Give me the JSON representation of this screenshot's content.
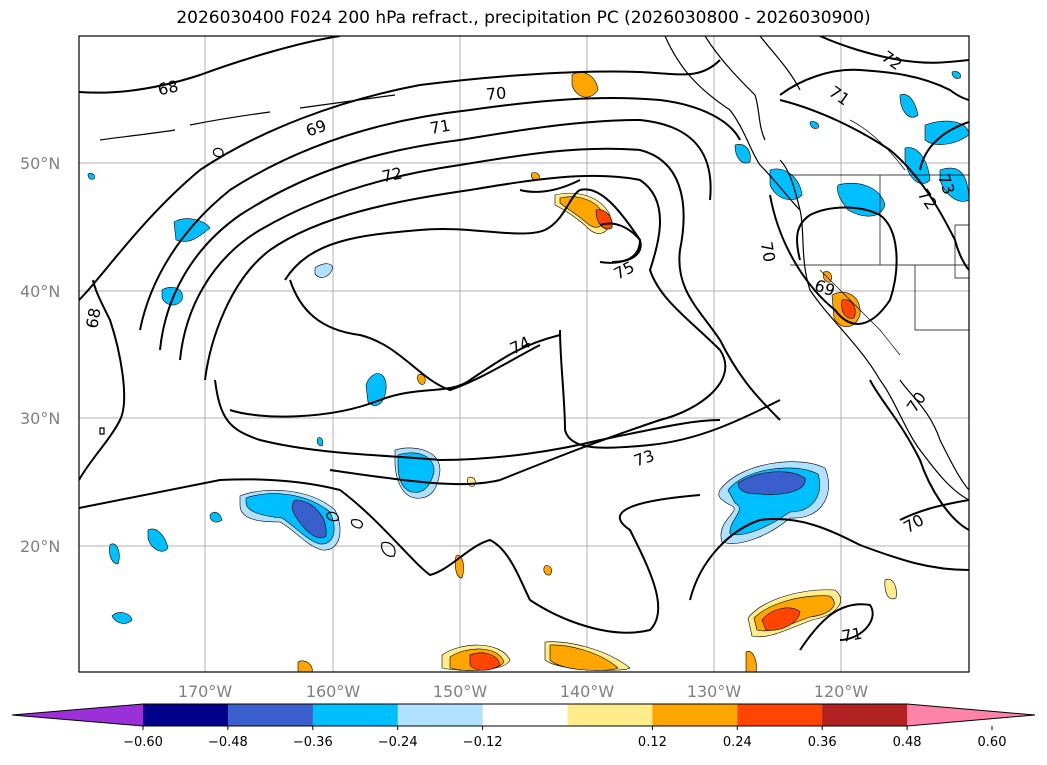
{
  "title": "2026030400 F024 200 hPa refract., precipitation PC (2026030800 - 2026030900)",
  "map": {
    "lat_labels": [
      "50°N",
      "40°N",
      "30°N",
      "20°N"
    ],
    "lon_labels": [
      "170°W",
      "160°W",
      "150°W",
      "140°W",
      "130°W",
      "120°W"
    ],
    "contour_labels": [
      "68",
      "69",
      "70",
      "71",
      "72",
      "72",
      "71",
      "70",
      "69",
      "68",
      "74",
      "75",
      "73",
      "70",
      "71",
      "72",
      "70",
      "73"
    ]
  },
  "colorbar": {
    "ticks": [
      "−0.60",
      "−0.48",
      "−0.36",
      "−0.24",
      "−0.12",
      "0.12",
      "0.24",
      "0.36",
      "0.48",
      "0.60"
    ],
    "colors": [
      "#9b30d9",
      "#00008b",
      "#3a5fcd",
      "#00bfff",
      "#b0e2ff",
      "#ffffff",
      "#ffec8b",
      "#ffa500",
      "#ff4500",
      "#b22222",
      "#ff82ab"
    ]
  }
}
